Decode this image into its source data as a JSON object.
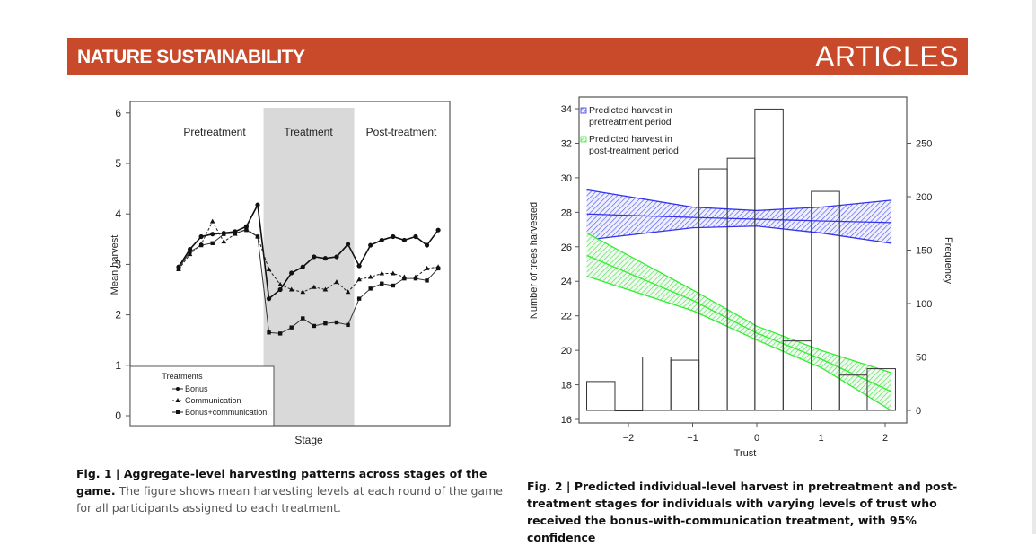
{
  "banner": {
    "journal": "NATURE SUSTAINABILITY",
    "section": "ARTICLES",
    "color": "#c84a2a"
  },
  "captions": {
    "fig1_bold": "Fig. 1 | Aggregate-level harvesting patterns across stages of the game.",
    "fig1_text": "The figure shows mean harvesting levels at each round of the game for all participants assigned to each treatment.",
    "fig2_bold": "Fig. 2 | Predicted individual-level harvest in pretreatment and post-treatment stages for individuals with varying levels of trust who received the bonus-with-communication treatment, with 95% confidence"
  },
  "chart_data": [
    {
      "type": "line",
      "title": "",
      "xlabel": "Stage",
      "ylabel": "Mean harvest",
      "ylim": [
        0,
        6
      ],
      "yticks": [
        "0",
        "1",
        "2",
        "3",
        "4",
        "5",
        "6"
      ],
      "stages": [
        {
          "label": "Pretreatment",
          "rounds": [
            1,
            8
          ],
          "shaded": false
        },
        {
          "label": "Treatment",
          "rounds": [
            9,
            16
          ],
          "shaded": true
        },
        {
          "label": "Post-treatment",
          "rounds": [
            17,
            24
          ],
          "shaded": false
        }
      ],
      "x": [
        1,
        2,
        3,
        4,
        5,
        6,
        7,
        8,
        9,
        10,
        11,
        12,
        13,
        14,
        15,
        16,
        17,
        18,
        19,
        20,
        21,
        22,
        23,
        24
      ],
      "legend_title": "Treatments",
      "legend_position": "bottom-left",
      "series": [
        {
          "name": "Bonus",
          "marker": "circle",
          "style": "solid",
          "values": [
            2.95,
            3.3,
            3.55,
            3.6,
            3.62,
            3.65,
            3.75,
            4.18,
            2.32,
            2.5,
            2.83,
            2.95,
            3.15,
            3.12,
            3.15,
            3.4,
            2.97,
            3.38,
            3.48,
            3.55,
            3.48,
            3.55,
            3.38,
            3.68
          ]
        },
        {
          "name": "Communication",
          "marker": "triangle",
          "style": "dashed",
          "values": [
            2.9,
            3.2,
            3.4,
            3.85,
            3.45,
            3.6,
            3.7,
            3.55,
            2.9,
            2.6,
            2.5,
            2.45,
            2.55,
            2.5,
            2.65,
            2.45,
            2.7,
            2.75,
            2.82,
            2.82,
            2.75,
            2.75,
            2.92,
            2.95
          ]
        },
        {
          "name": "Bonus+communication",
          "marker": "square",
          "style": "solid-thin",
          "values": [
            2.92,
            3.25,
            3.38,
            3.42,
            3.6,
            3.62,
            3.68,
            3.55,
            1.65,
            1.63,
            1.75,
            1.93,
            1.78,
            1.83,
            1.85,
            1.8,
            2.32,
            2.52,
            2.62,
            2.58,
            2.72,
            2.72,
            2.68,
            2.92
          ]
        }
      ]
    },
    {
      "type": "bar",
      "subtype": "histogram-with-prediction-bands",
      "xlabel": "Trust",
      "ylabel": "Number of trees harvested",
      "y2label": "Frequency",
      "xlim": [
        -2.65,
        2.2
      ],
      "ylim": [
        16,
        34.5
      ],
      "y2lim": [
        0,
        285
      ],
      "xticks": [
        "-2",
        "-1",
        "0",
        "1",
        "2"
      ],
      "yticks": [
        "16",
        "18",
        "20",
        "22",
        "24",
        "26",
        "28",
        "30",
        "32",
        "34"
      ],
      "y2ticks": [
        "0",
        "50",
        "100",
        "150",
        "200",
        "250"
      ],
      "legend_position": "top-left",
      "histogram": {
        "bin_edges": [
          -2.65,
          -2.21,
          -1.78,
          -1.34,
          -0.9,
          -0.46,
          -0.03,
          0.41,
          0.85,
          1.29,
          1.72,
          2.16
        ],
        "frequency": [
          27,
          0,
          50,
          47,
          226,
          236,
          282,
          65,
          205,
          33,
          39
        ]
      },
      "bands": [
        {
          "name": "Predicted harvest in pretreatment period",
          "color": "#3333ee",
          "x": [
            -2.65,
            -1.0,
            0.0,
            1.0,
            2.1
          ],
          "fit": [
            27.9,
            27.7,
            27.6,
            27.5,
            27.4
          ],
          "upper": [
            29.3,
            28.3,
            28.1,
            28.3,
            28.7
          ],
          "lower": [
            26.4,
            27.1,
            27.2,
            26.8,
            26.2
          ]
        },
        {
          "name": "Predicted harvest in post-treatment period",
          "color": "#33ee33",
          "x": [
            -2.65,
            -1.0,
            0.0,
            1.0,
            2.1
          ],
          "fit": [
            25.5,
            22.9,
            21.0,
            19.5,
            17.6
          ],
          "upper": [
            26.8,
            23.5,
            21.4,
            20.0,
            18.7
          ],
          "lower": [
            24.3,
            22.3,
            20.6,
            19.0,
            16.5
          ]
        }
      ]
    }
  ]
}
